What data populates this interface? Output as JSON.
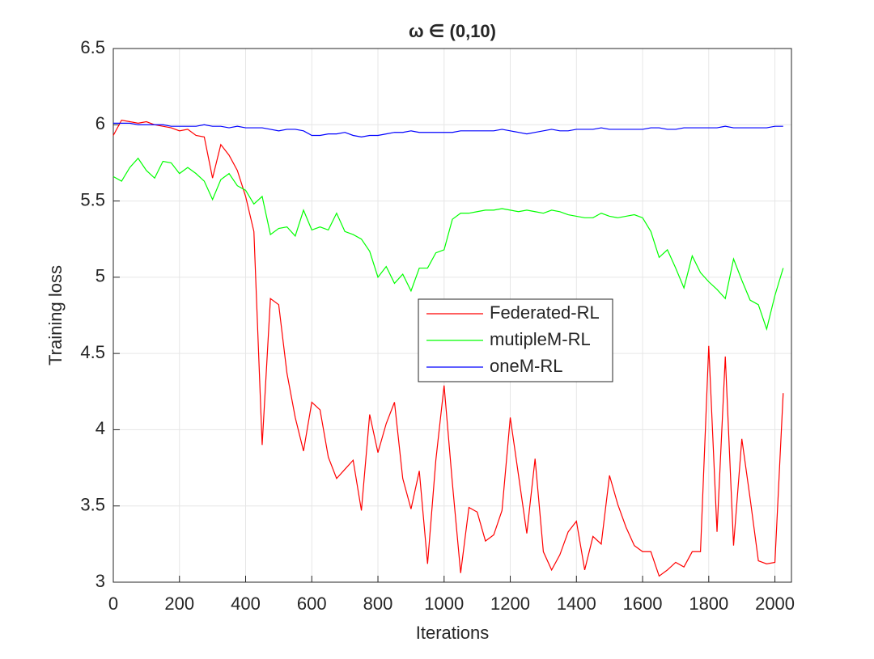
{
  "chart_data": {
    "type": "line",
    "title": "ω ∈ (0,10)",
    "x_label": "Iterations",
    "y_label": "Training loss",
    "x": [
      0,
      25,
      50,
      75,
      100,
      125,
      150,
      175,
      200,
      225,
      250,
      275,
      300,
      325,
      350,
      375,
      400,
      425,
      450,
      475,
      500,
      525,
      550,
      575,
      600,
      625,
      650,
      675,
      700,
      725,
      750,
      775,
      800,
      825,
      850,
      875,
      900,
      925,
      950,
      975,
      1000,
      1025,
      1050,
      1075,
      1100,
      1125,
      1150,
      1175,
      1200,
      1225,
      1250,
      1275,
      1300,
      1325,
      1350,
      1375,
      1400,
      1425,
      1450,
      1475,
      1500,
      1525,
      1550,
      1575,
      1600,
      1625,
      1650,
      1675,
      1700,
      1725,
      1750,
      1775,
      1800,
      1825,
      1850,
      1875,
      1900,
      1925,
      1950,
      1975,
      2000,
      2025
    ],
    "series": [
      {
        "name": "Federated-RL",
        "color": "#ff0000",
        "values": [
          5.93,
          6.03,
          6.02,
          6.01,
          6.02,
          6.0,
          5.99,
          5.98,
          5.96,
          5.97,
          5.93,
          5.92,
          5.65,
          5.87,
          5.8,
          5.7,
          5.53,
          5.3,
          3.9,
          4.86,
          4.82,
          4.37,
          4.08,
          3.86,
          4.18,
          4.13,
          3.82,
          3.68,
          3.74,
          3.8,
          3.47,
          4.1,
          3.85,
          4.04,
          4.18,
          3.68,
          3.48,
          3.73,
          3.12,
          3.8,
          4.29,
          3.65,
          3.06,
          3.49,
          3.46,
          3.27,
          3.31,
          3.47,
          4.08,
          3.7,
          3.32,
          3.81,
          3.2,
          3.08,
          3.18,
          3.33,
          3.4,
          3.08,
          3.3,
          3.25,
          3.7,
          3.51,
          3.36,
          3.24,
          3.2,
          3.2,
          3.04,
          3.08,
          3.13,
          3.1,
          3.2,
          3.2,
          4.55,
          3.33,
          4.48,
          3.24,
          3.94,
          3.55,
          3.14,
          3.12,
          3.13,
          4.24
        ]
      },
      {
        "name": "mutipleM-RL",
        "color": "#00ff00",
        "values": [
          5.66,
          5.63,
          5.72,
          5.78,
          5.7,
          5.65,
          5.76,
          5.75,
          5.68,
          5.72,
          5.68,
          5.63,
          5.51,
          5.64,
          5.68,
          5.6,
          5.57,
          5.48,
          5.53,
          5.28,
          5.32,
          5.33,
          5.27,
          5.44,
          5.31,
          5.33,
          5.31,
          5.42,
          5.3,
          5.28,
          5.25,
          5.17,
          5.0,
          5.07,
          4.96,
          5.02,
          4.91,
          5.06,
          5.06,
          5.16,
          5.18,
          5.38,
          5.42,
          5.42,
          5.43,
          5.44,
          5.44,
          5.45,
          5.44,
          5.43,
          5.44,
          5.43,
          5.42,
          5.44,
          5.43,
          5.41,
          5.4,
          5.39,
          5.39,
          5.42,
          5.4,
          5.39,
          5.4,
          5.41,
          5.39,
          5.3,
          5.13,
          5.18,
          5.06,
          4.93,
          5.14,
          5.03,
          4.97,
          4.92,
          4.86,
          5.12,
          4.98,
          4.85,
          4.82,
          4.66,
          4.88,
          5.06
        ]
      },
      {
        "name": "oneM-RL",
        "color": "#0000ff",
        "values": [
          6.01,
          6.01,
          6.01,
          6.0,
          6.0,
          6.0,
          6.0,
          5.99,
          5.99,
          5.99,
          5.99,
          6.0,
          5.99,
          5.99,
          5.98,
          5.99,
          5.98,
          5.98,
          5.98,
          5.97,
          5.96,
          5.97,
          5.97,
          5.96,
          5.93,
          5.93,
          5.94,
          5.94,
          5.95,
          5.93,
          5.92,
          5.93,
          5.93,
          5.94,
          5.95,
          5.95,
          5.96,
          5.95,
          5.95,
          5.95,
          5.95,
          5.95,
          5.96,
          5.96,
          5.96,
          5.96,
          5.96,
          5.97,
          5.96,
          5.95,
          5.94,
          5.95,
          5.96,
          5.97,
          5.96,
          5.96,
          5.97,
          5.97,
          5.97,
          5.98,
          5.97,
          5.97,
          5.97,
          5.97,
          5.97,
          5.98,
          5.98,
          5.97,
          5.97,
          5.98,
          5.98,
          5.98,
          5.98,
          5.98,
          5.99,
          5.98,
          5.98,
          5.98,
          5.98,
          5.98,
          5.99,
          5.99
        ]
      }
    ],
    "xlim": [
      0,
      2050
    ],
    "ylim": [
      3,
      6.5
    ],
    "xticks": [
      0,
      200,
      400,
      600,
      800,
      1000,
      1200,
      1400,
      1600,
      1800,
      2000
    ],
    "yticks": [
      3,
      3.5,
      4,
      4.5,
      5,
      5.5,
      6,
      6.5
    ],
    "grid": true,
    "legend": "center"
  }
}
